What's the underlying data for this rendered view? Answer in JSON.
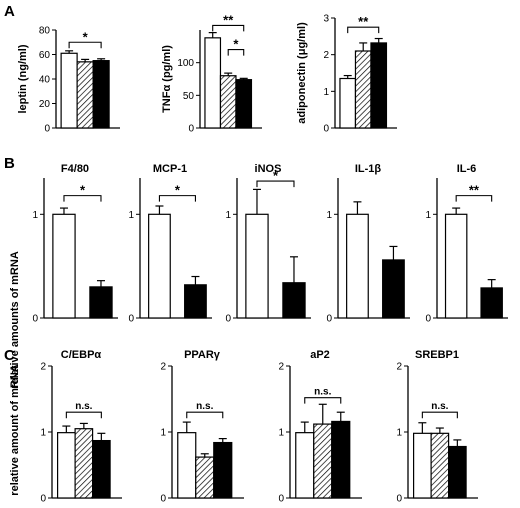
{
  "panels": [
    {
      "label": "A",
      "ylabel": "",
      "charts": [
        {
          "type": "bar",
          "title": "",
          "ylabel": "leptin (ng/ml)",
          "ylim": [
            0,
            80
          ],
          "yticks": [
            0,
            20,
            40,
            60,
            80
          ],
          "values": [
            61,
            54,
            55
          ],
          "errors": [
            2,
            2,
            1.5
          ],
          "patterns": [
            "white",
            "hatch",
            "black"
          ],
          "sig": [
            {
              "from": 0,
              "to": 2,
              "label": "*",
              "y": 70
            }
          ]
        },
        {
          "type": "bar",
          "title": "",
          "ylabel": "TNFα  (pg/ml)",
          "ylim": [
            0,
            150
          ],
          "yticks": [
            0,
            50,
            100
          ],
          "values": [
            138,
            80,
            74
          ],
          "errors": [
            8,
            4,
            2
          ],
          "patterns": [
            "white",
            "hatch",
            "black"
          ],
          "sig": [
            {
              "from": 0,
              "to": 2,
              "label": "**",
              "y": 157
            },
            {
              "from": 1,
              "to": 2,
              "label": "*",
              "y": 120
            }
          ]
        },
        {
          "type": "bar",
          "title": "",
          "ylabel": "adiponectin (μg/ml)",
          "ylim": [
            0,
            3
          ],
          "yticks": [
            0,
            1,
            2,
            3
          ],
          "values": [
            1.35,
            2.1,
            2.32
          ],
          "errors": [
            0.08,
            0.22,
            0.12
          ],
          "patterns": [
            "white",
            "hatch",
            "black"
          ],
          "sig": [
            {
              "from": 0,
              "to": 2,
              "label": "**",
              "y": 2.75
            }
          ]
        }
      ]
    },
    {
      "label": "B",
      "ylabel": "relative amounts of mRNA",
      "charts": [
        {
          "type": "bar",
          "title": "F4/80",
          "ylim": [
            0,
            1.35
          ],
          "yticks": [
            0,
            1
          ],
          "values": [
            1.0,
            0.3
          ],
          "errors": [
            0.06,
            0.06
          ],
          "patterns": [
            "white",
            "black"
          ],
          "sig": [
            {
              "from": 0,
              "to": 1,
              "label": "*",
              "y": 1.18
            }
          ]
        },
        {
          "type": "bar",
          "title": "MCP-1",
          "ylim": [
            0,
            1.35
          ],
          "yticks": [
            0,
            1
          ],
          "values": [
            1.0,
            0.32
          ],
          "errors": [
            0.08,
            0.08
          ],
          "patterns": [
            "white",
            "black"
          ],
          "sig": [
            {
              "from": 0,
              "to": 1,
              "label": "*",
              "y": 1.18
            }
          ]
        },
        {
          "type": "bar",
          "title": "iNOS",
          "ylim": [
            0,
            1.35
          ],
          "yticks": [
            0,
            1
          ],
          "values": [
            1.0,
            0.34
          ],
          "errors": [
            0.24,
            0.25
          ],
          "patterns": [
            "white",
            "black"
          ],
          "sig": [
            {
              "from": 0,
              "to": 1,
              "label": "*",
              "y": 1.32
            }
          ]
        },
        {
          "type": "bar",
          "title": "IL-1β",
          "ylim": [
            0,
            1.35
          ],
          "yticks": [
            0,
            1
          ],
          "values": [
            1.0,
            0.56
          ],
          "errors": [
            0.12,
            0.13
          ],
          "patterns": [
            "white",
            "black"
          ],
          "sig": []
        },
        {
          "type": "bar",
          "title": "IL-6",
          "ylim": [
            0,
            1.35
          ],
          "yticks": [
            0,
            1
          ],
          "values": [
            1.0,
            0.29
          ],
          "errors": [
            0.06,
            0.08
          ],
          "patterns": [
            "white",
            "black"
          ],
          "sig": [
            {
              "from": 0,
              "to": 1,
              "label": "**",
              "y": 1.18
            }
          ]
        }
      ]
    },
    {
      "label": "C",
      "ylabel": "relative amount of mRNA",
      "charts": [
        {
          "type": "bar",
          "title": "C/EBPα",
          "ylim": [
            0,
            2
          ],
          "yticks": [
            0,
            1,
            2
          ],
          "values": [
            0.99,
            1.05,
            0.87
          ],
          "errors": [
            0.1,
            0.08,
            0.11
          ],
          "patterns": [
            "white",
            "hatch",
            "black"
          ],
          "sig": [
            {
              "from": 0,
              "to": 2,
              "label": "n.s.",
              "y": 1.3
            }
          ]
        },
        {
          "type": "bar",
          "title": "PPARγ",
          "ylim": [
            0,
            2
          ],
          "yticks": [
            0,
            1,
            2
          ],
          "values": [
            0.99,
            0.62,
            0.84
          ],
          "errors": [
            0.16,
            0.05,
            0.06
          ],
          "patterns": [
            "white",
            "hatch",
            "black"
          ],
          "sig": [
            {
              "from": 0,
              "to": 2,
              "label": "n.s.",
              "y": 1.3
            }
          ]
        },
        {
          "type": "bar",
          "title": "aP2",
          "ylim": [
            0,
            2
          ],
          "yticks": [
            0,
            1,
            2
          ],
          "values": [
            0.99,
            1.12,
            1.16
          ],
          "errors": [
            0.16,
            0.3,
            0.14
          ],
          "patterns": [
            "white",
            "hatch",
            "black"
          ],
          "sig": [
            {
              "from": 0,
              "to": 2,
              "label": "n.s.",
              "y": 1.52
            }
          ]
        },
        {
          "type": "bar",
          "title": "SREBP1",
          "ylim": [
            0,
            2
          ],
          "yticks": [
            0,
            1,
            2
          ],
          "values": [
            0.98,
            0.98,
            0.78
          ],
          "errors": [
            0.16,
            0.08,
            0.1
          ],
          "patterns": [
            "white",
            "hatch",
            "black"
          ],
          "sig": [
            {
              "from": 0,
              "to": 2,
              "label": "n.s.",
              "y": 1.3
            }
          ]
        }
      ]
    }
  ],
  "chart_data": [
    {
      "type": "bar",
      "ylabel": "leptin (ng/ml)",
      "series": [
        {
          "values": [
            61,
            54,
            55
          ]
        }
      ],
      "ylim": [
        0,
        80
      ]
    },
    {
      "type": "bar",
      "ylabel": "TNFα  (pg/ml)",
      "series": [
        {
          "values": [
            138,
            80,
            74
          ]
        }
      ],
      "ylim": [
        0,
        150
      ]
    },
    {
      "type": "bar",
      "ylabel": "adiponectin (μg/ml)",
      "series": [
        {
          "values": [
            1.35,
            2.1,
            2.32
          ]
        }
      ],
      "ylim": [
        0,
        3
      ]
    },
    {
      "type": "bar",
      "title": "F4/80",
      "series": [
        {
          "values": [
            1.0,
            0.3
          ]
        }
      ]
    },
    {
      "type": "bar",
      "title": "MCP-1",
      "series": [
        {
          "values": [
            1.0,
            0.32
          ]
        }
      ]
    },
    {
      "type": "bar",
      "title": "iNOS",
      "series": [
        {
          "values": [
            1.0,
            0.34
          ]
        }
      ]
    },
    {
      "type": "bar",
      "title": "IL-1β",
      "series": [
        {
          "values": [
            1.0,
            0.56
          ]
        }
      ]
    },
    {
      "type": "bar",
      "title": "IL-6",
      "series": [
        {
          "values": [
            1.0,
            0.29
          ]
        }
      ]
    },
    {
      "type": "bar",
      "title": "C/EBPα",
      "series": [
        {
          "values": [
            0.99,
            1.05,
            0.87
          ]
        }
      ],
      "ylim": [
        0,
        2
      ]
    },
    {
      "type": "bar",
      "title": "PPARγ",
      "series": [
        {
          "values": [
            0.99,
            0.62,
            0.84
          ]
        }
      ],
      "ylim": [
        0,
        2
      ]
    },
    {
      "type": "bar",
      "title": "aP2",
      "series": [
        {
          "values": [
            0.99,
            1.12,
            1.16
          ]
        }
      ],
      "ylim": [
        0,
        2
      ]
    },
    {
      "type": "bar",
      "title": "SREBP1",
      "series": [
        {
          "values": [
            0.98,
            0.98,
            0.78
          ]
        }
      ],
      "ylim": [
        0,
        2
      ]
    }
  ]
}
